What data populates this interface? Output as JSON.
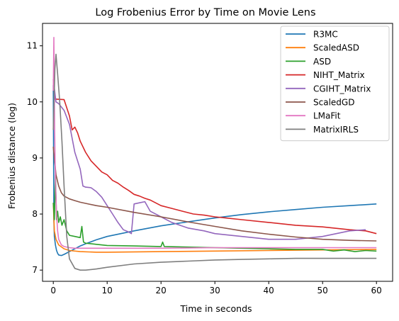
{
  "chart_data": {
    "type": "line",
    "title": "Log Frobenius Error by Time on Movie Lens",
    "xlabel": "Time in seconds",
    "ylabel": "Frobenius distance (log)",
    "xlim": [
      -2,
      63
    ],
    "ylim": [
      6.8,
      11.4
    ],
    "xticks": [
      0,
      10,
      20,
      30,
      40,
      50,
      60
    ],
    "yticks": [
      7,
      8,
      9,
      10,
      11
    ],
    "grid": false,
    "legend_position": "top-right",
    "series": [
      {
        "name": "R3MC",
        "color": "#1f77b4",
        "x": [
          0,
          0.1,
          0.2,
          0.4,
          0.6,
          0.8,
          1.0,
          1.5,
          2,
          3,
          4,
          5,
          6,
          8,
          10,
          15,
          20,
          25,
          30,
          35,
          40,
          45,
          50,
          55,
          60
        ],
        "y": [
          10.3,
          7.9,
          7.6,
          7.45,
          7.35,
          7.3,
          7.27,
          7.26,
          7.28,
          7.33,
          7.38,
          7.43,
          7.47,
          7.54,
          7.6,
          7.7,
          7.79,
          7.86,
          7.93,
          7.99,
          8.04,
          8.08,
          8.12,
          8.15,
          8.18
        ]
      },
      {
        "name": "ScaledASD",
        "color": "#ff7f0e",
        "x": [
          0,
          0.2,
          0.5,
          1,
          2,
          3,
          5,
          8,
          10,
          20,
          30,
          40,
          50,
          60
        ],
        "y": [
          8.2,
          7.7,
          7.55,
          7.45,
          7.38,
          7.35,
          7.33,
          7.32,
          7.32,
          7.33,
          7.34,
          7.35,
          7.36,
          7.37
        ]
      },
      {
        "name": "ASD",
        "color": "#2ca02c",
        "x": [
          0,
          0.2,
          0.4,
          0.6,
          0.8,
          1.0,
          1.3,
          1.6,
          2,
          2.5,
          3,
          4,
          5,
          5.3,
          5.6,
          6,
          8,
          10,
          15,
          20,
          20.3,
          20.6,
          25,
          30,
          35,
          40,
          45,
          50,
          52,
          54,
          56,
          58,
          60
        ],
        "y": [
          8.2,
          7.9,
          8.7,
          7.9,
          8.05,
          7.85,
          7.95,
          7.8,
          7.9,
          7.7,
          7.62,
          7.6,
          7.58,
          7.78,
          7.5,
          7.48,
          7.46,
          7.44,
          7.43,
          7.42,
          7.5,
          7.42,
          7.41,
          7.4,
          7.39,
          7.38,
          7.37,
          7.37,
          7.34,
          7.36,
          7.33,
          7.35,
          7.34
        ]
      },
      {
        "name": "NIHT_Matrix",
        "color": "#d62728",
        "x": [
          0,
          0.3,
          2,
          3,
          3.5,
          4,
          4.5,
          5,
          6,
          7,
          8,
          9,
          10,
          11,
          12,
          13,
          14,
          15,
          16,
          17,
          18,
          20,
          22,
          24,
          26,
          28,
          30,
          32,
          35,
          40,
          45,
          50,
          55,
          58,
          60
        ],
        "y": [
          10.4,
          10.05,
          10.04,
          9.75,
          9.5,
          9.55,
          9.45,
          9.3,
          9.1,
          8.95,
          8.85,
          8.75,
          8.7,
          8.6,
          8.55,
          8.48,
          8.42,
          8.35,
          8.32,
          8.28,
          8.25,
          8.15,
          8.1,
          8.05,
          8.0,
          7.98,
          7.95,
          7.93,
          7.9,
          7.85,
          7.8,
          7.77,
          7.72,
          7.7,
          7.65
        ]
      },
      {
        "name": "CGIHT_Matrix",
        "color": "#9467bd",
        "x": [
          0,
          0.5,
          1,
          2,
          3,
          4,
          5,
          5.5,
          6,
          7,
          8,
          9,
          10,
          11,
          12,
          13,
          14,
          14.5,
          15,
          16,
          17,
          18,
          20,
          22,
          25,
          28,
          30,
          35,
          40,
          45,
          50,
          55,
          58
        ],
        "y": [
          10.4,
          10.0,
          9.97,
          9.85,
          9.6,
          9.1,
          8.8,
          8.5,
          8.48,
          8.47,
          8.4,
          8.3,
          8.15,
          8.0,
          7.85,
          7.72,
          7.68,
          7.65,
          8.18,
          8.2,
          8.22,
          8.05,
          7.95,
          7.85,
          7.75,
          7.7,
          7.65,
          7.6,
          7.55,
          7.55,
          7.6,
          7.7,
          7.72
        ]
      },
      {
        "name": "ScaledGD",
        "color": "#8c564b",
        "x": [
          0,
          0.2,
          0.5,
          1,
          1.5,
          2,
          3,
          4,
          5,
          6,
          8,
          10,
          15,
          20,
          25,
          30,
          35,
          40,
          45,
          50,
          55,
          60
        ],
        "y": [
          9.2,
          9.0,
          8.7,
          8.5,
          8.38,
          8.32,
          8.27,
          8.24,
          8.21,
          8.19,
          8.15,
          8.12,
          8.03,
          7.95,
          7.86,
          7.78,
          7.7,
          7.64,
          7.59,
          7.55,
          7.53,
          7.52
        ]
      },
      {
        "name": "LMaFit",
        "color": "#e377c2",
        "x": [
          0,
          0.1,
          0.25,
          0.4,
          0.6,
          0.8,
          1.0,
          1.5,
          2,
          3,
          4,
          5,
          8,
          10,
          20,
          30,
          40,
          50,
          60
        ],
        "y": [
          10.2,
          11.15,
          9.5,
          8.6,
          8.0,
          7.7,
          7.55,
          7.45,
          7.42,
          7.4,
          7.39,
          7.39,
          7.39,
          7.39,
          7.39,
          7.4,
          7.4,
          7.4,
          7.4
        ]
      },
      {
        "name": "MatrixIRLS",
        "color": "#7f7f7f",
        "x": [
          0,
          0.3,
          0.5,
          0.8,
          1.2,
          1.6,
          2,
          2.5,
          3,
          4,
          5,
          6,
          8,
          10,
          15,
          20,
          25,
          30,
          35,
          40,
          45,
          50,
          55,
          60
        ],
        "y": [
          9.5,
          10.6,
          10.85,
          10.5,
          10.0,
          9.3,
          8.5,
          7.6,
          7.2,
          7.03,
          7.0,
          7.0,
          7.02,
          7.05,
          7.11,
          7.14,
          7.16,
          7.18,
          7.19,
          7.2,
          7.21,
          7.21,
          7.21,
          7.21
        ]
      }
    ]
  }
}
